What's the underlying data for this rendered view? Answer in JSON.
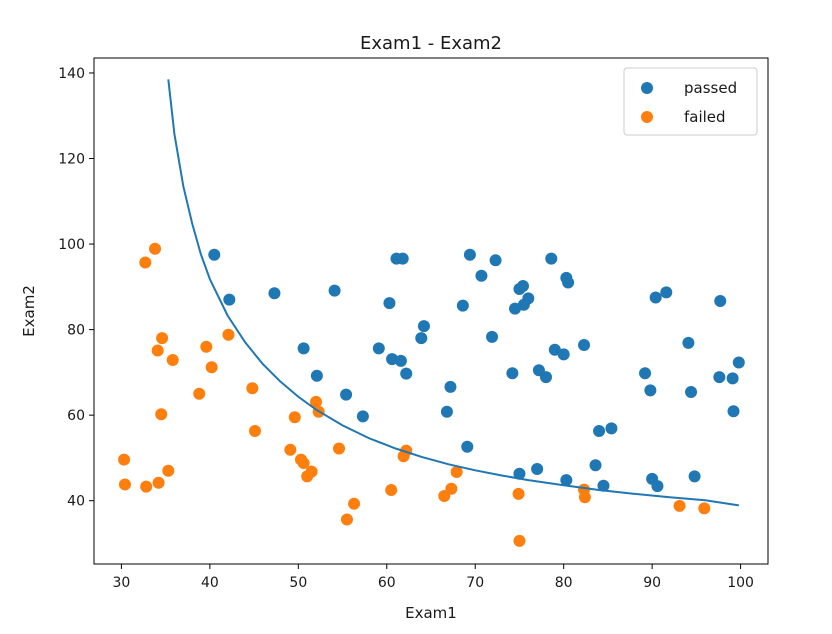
{
  "chart_data": {
    "type": "scatter",
    "title": "Exam1 - Exam2",
    "xlabel": "Exam1",
    "ylabel": "Exam2",
    "xlim": [
      26.9,
      103.1
    ],
    "ylim": [
      25.2,
      143.5
    ],
    "xticks": [
      30,
      40,
      50,
      60,
      70,
      80,
      90,
      100
    ],
    "yticks": [
      40,
      60,
      80,
      100,
      120,
      140
    ],
    "grid": false,
    "legend_placement": "top-right",
    "series": [
      {
        "name": "passed",
        "color": "#1f77b4",
        "points": [
          [
            40.5,
            97.5
          ],
          [
            42.2,
            87.0
          ],
          [
            47.3,
            88.5
          ],
          [
            50.6,
            75.6
          ],
          [
            52.1,
            69.2
          ],
          [
            54.1,
            89.1
          ],
          [
            55.4,
            64.8
          ],
          [
            57.3,
            59.7
          ],
          [
            59.1,
            75.6
          ],
          [
            60.3,
            86.2
          ],
          [
            60.6,
            73.1
          ],
          [
            61.1,
            96.6
          ],
          [
            61.6,
            72.7
          ],
          [
            61.8,
            96.6
          ],
          [
            62.2,
            69.7
          ],
          [
            63.9,
            78.0
          ],
          [
            64.2,
            80.8
          ],
          [
            66.8,
            60.8
          ],
          [
            67.2,
            66.6
          ],
          [
            68.6,
            85.6
          ],
          [
            69.1,
            52.6
          ],
          [
            69.4,
            97.5
          ],
          [
            70.7,
            92.6
          ],
          [
            71.9,
            78.3
          ],
          [
            72.3,
            96.2
          ],
          [
            74.2,
            69.8
          ],
          [
            74.5,
            84.9
          ],
          [
            75.0,
            46.3
          ],
          [
            75.0,
            89.5
          ],
          [
            75.4,
            90.2
          ],
          [
            75.5,
            85.8
          ],
          [
            76.0,
            87.3
          ],
          [
            77.0,
            47.4
          ],
          [
            77.2,
            70.5
          ],
          [
            78.0,
            68.9
          ],
          [
            78.6,
            96.6
          ],
          [
            79.0,
            75.3
          ],
          [
            80.0,
            74.2
          ],
          [
            80.3,
            44.8
          ],
          [
            80.3,
            92.1
          ],
          [
            80.5,
            91.0
          ],
          [
            82.3,
            76.4
          ],
          [
            83.6,
            48.3
          ],
          [
            84.0,
            56.3
          ],
          [
            84.5,
            43.5
          ],
          [
            85.4,
            56.9
          ],
          [
            89.2,
            69.8
          ],
          [
            89.8,
            65.8
          ],
          [
            90.0,
            45.1
          ],
          [
            90.4,
            87.5
          ],
          [
            90.6,
            43.4
          ],
          [
            91.6,
            88.7
          ],
          [
            94.1,
            76.9
          ],
          [
            94.4,
            65.4
          ],
          [
            94.8,
            45.7
          ],
          [
            97.6,
            68.9
          ],
          [
            97.7,
            86.7
          ],
          [
            99.1,
            68.6
          ],
          [
            99.2,
            60.9
          ],
          [
            99.8,
            72.3
          ]
        ]
      },
      {
        "name": "failed",
        "color": "#ff7f0e",
        "points": [
          [
            30.3,
            49.6
          ],
          [
            30.4,
            43.8
          ],
          [
            32.7,
            95.7
          ],
          [
            32.8,
            43.3
          ],
          [
            33.8,
            98.9
          ],
          [
            34.1,
            75.1
          ],
          [
            34.2,
            44.2
          ],
          [
            34.5,
            60.2
          ],
          [
            34.6,
            78.0
          ],
          [
            35.3,
            47.0
          ],
          [
            35.8,
            72.9
          ],
          [
            38.8,
            65.0
          ],
          [
            39.6,
            76.0
          ],
          [
            40.2,
            71.2
          ],
          [
            42.1,
            78.8
          ],
          [
            44.8,
            66.3
          ],
          [
            45.1,
            56.3
          ],
          [
            49.1,
            51.9
          ],
          [
            49.6,
            59.5
          ],
          [
            50.3,
            49.6
          ],
          [
            50.6,
            48.8
          ],
          [
            51.0,
            45.7
          ],
          [
            51.5,
            46.8
          ],
          [
            52.0,
            63.1
          ],
          [
            52.3,
            60.8
          ],
          [
            54.6,
            52.2
          ],
          [
            55.5,
            35.6
          ],
          [
            56.3,
            39.3
          ],
          [
            60.5,
            42.5
          ],
          [
            61.9,
            50.4
          ],
          [
            62.2,
            51.7
          ],
          [
            66.5,
            41.1
          ],
          [
            67.3,
            42.8
          ],
          [
            67.9,
            46.7
          ],
          [
            74.9,
            41.6
          ],
          [
            75.0,
            30.6
          ],
          [
            82.3,
            42.6
          ],
          [
            82.4,
            40.8
          ],
          [
            93.1,
            38.8
          ],
          [
            95.9,
            38.2
          ]
        ]
      },
      {
        "name": "",
        "type": "line",
        "role": "decision-boundary",
        "color": "#1f77b4",
        "points": [
          [
            35.3,
            138.5
          ],
          [
            36.0,
            125.6
          ],
          [
            37.0,
            113.5
          ],
          [
            38.0,
            104.8
          ],
          [
            39.0,
            97.5
          ],
          [
            40.0,
            91.8
          ],
          [
            42.0,
            83.3
          ],
          [
            44.0,
            77.0
          ],
          [
            46.0,
            71.9
          ],
          [
            48.0,
            67.8
          ],
          [
            50.0,
            64.3
          ],
          [
            52.0,
            61.3
          ],
          [
            55.0,
            57.6
          ],
          [
            58.0,
            54.6
          ],
          [
            61.0,
            52.2
          ],
          [
            64.0,
            50.2
          ],
          [
            67.0,
            48.5
          ],
          [
            70.0,
            47.1
          ],
          [
            73.0,
            45.9
          ],
          [
            76.0,
            44.8
          ],
          [
            80.0,
            43.6
          ],
          [
            84.0,
            42.5
          ],
          [
            88.0,
            41.6
          ],
          [
            92.0,
            40.8
          ],
          [
            96.0,
            40.1
          ],
          [
            99.8,
            38.9
          ]
        ]
      }
    ]
  }
}
